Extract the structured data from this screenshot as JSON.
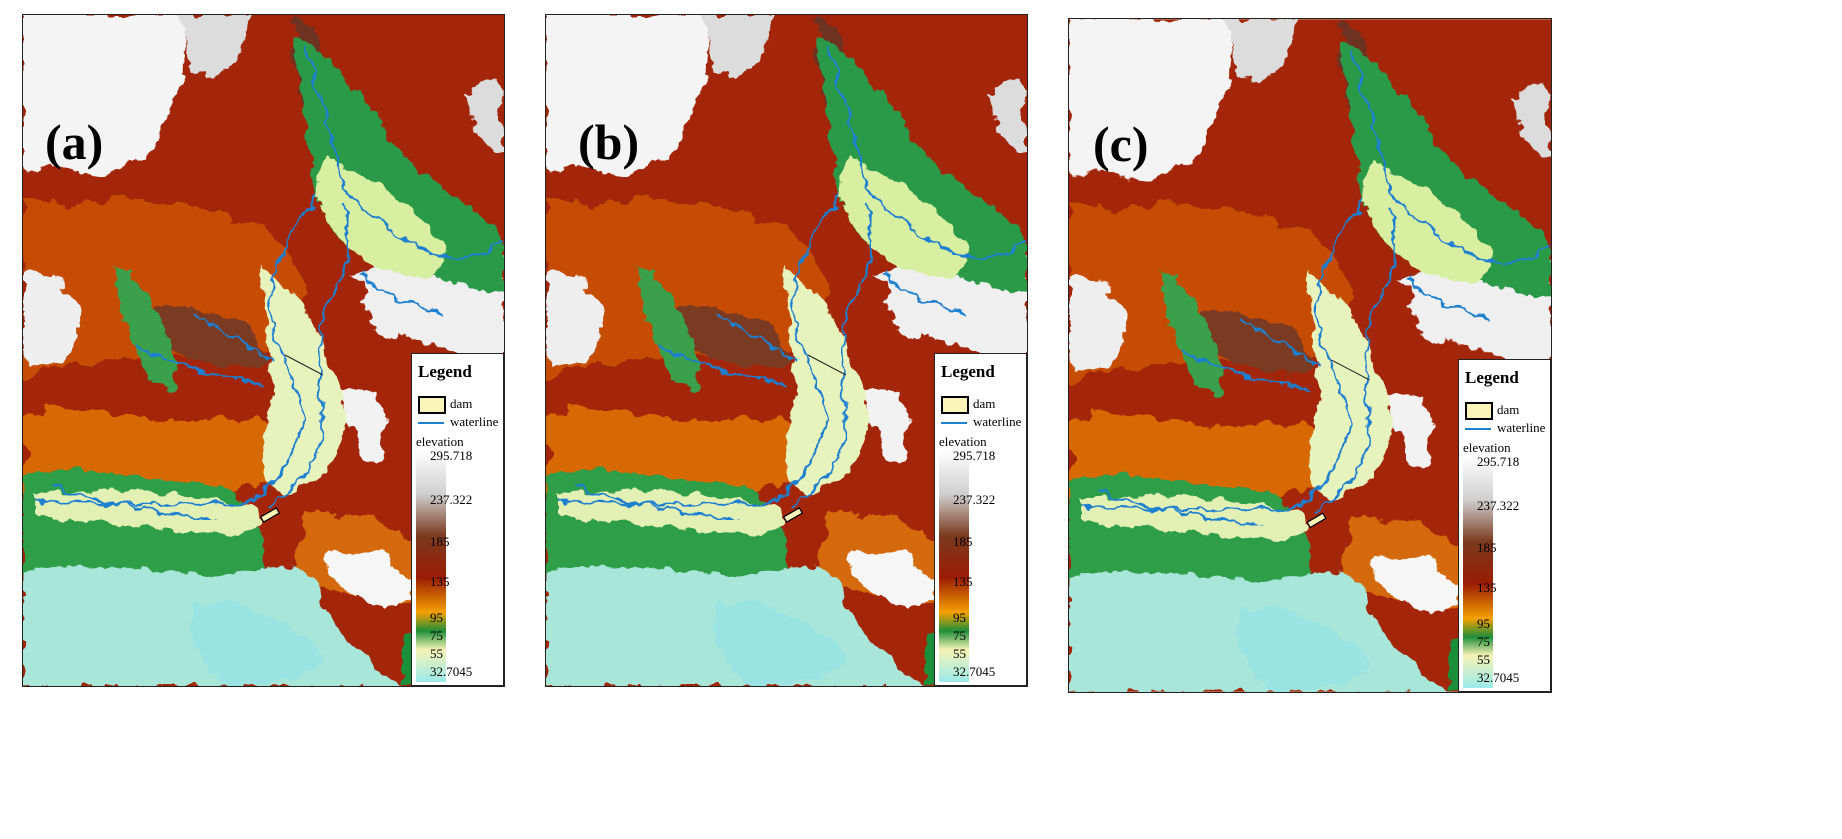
{
  "panels": [
    {
      "label": "(a)"
    },
    {
      "label": "(b)"
    },
    {
      "label": "(c)"
    }
  ],
  "legend": {
    "title": "Legend",
    "dam_label": "dam",
    "waterline_label": "waterline",
    "elevation_label": "elevation",
    "ticks": [
      "295.718",
      "237.322",
      "185",
      "135",
      "95",
      "75",
      "55",
      "32.7045"
    ],
    "ramp_colors": [
      "#ffffff",
      "#cfcfcf",
      "#7a3a1e",
      "#9a1c04",
      "#f5a000",
      "#1f8f3a",
      "#f6f3b4",
      "#9aeaea"
    ]
  },
  "colors": {
    "waterline": "#1f7fd0",
    "dam_fill": "#fbf4b8"
  }
}
